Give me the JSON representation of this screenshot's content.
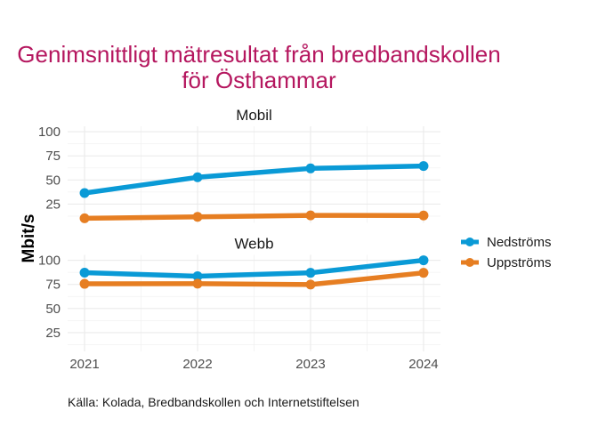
{
  "chart_data": {
    "type": "line",
    "title": "Genimsnittligt mätresultat från bredbandskollen för Östhammar",
    "title_lines": [
      "Genimsnittligt mätresultat från bredbandskollen",
      "för Östhammar"
    ],
    "xlabel": "",
    "ylabel": "Mbit/s",
    "x": [
      2021,
      2022,
      2023,
      2024
    ],
    "x_tick_labels": [
      "2021",
      "2022",
      "2023",
      "2024"
    ],
    "xlim": [
      2020.85,
      2024.15
    ],
    "y_ticks": [
      25,
      50,
      75,
      100
    ],
    "y_tick_labels": [
      "25",
      "50",
      "75",
      "100"
    ],
    "ylim": [
      5.6,
      105.6
    ],
    "grid": true,
    "legend_position": "right",
    "colors": {
      "Nedströms": "#0a9ad6",
      "Uppströms": "#e67e22",
      "title": "#b5175f"
    },
    "facets": [
      {
        "name": "Mobil",
        "series": [
          {
            "name": "Nedströms",
            "values": [
              36.5,
              52.8,
              62.0,
              64.5
            ]
          },
          {
            "name": "Uppströms",
            "values": [
              10.3,
              11.8,
              13.3,
              13.2
            ]
          }
        ]
      },
      {
        "name": "Webb",
        "series": [
          {
            "name": "Nedströms",
            "values": [
              87.2,
              83.5,
              87.0,
              100.0
            ]
          },
          {
            "name": "Uppströms",
            "values": [
              75.6,
              75.8,
              74.8,
              87.0
            ]
          }
        ]
      }
    ],
    "legend": [
      "Nedströms",
      "Uppströms"
    ],
    "caption": "Källa: Kolada, Bredbandskollen och Internetstiftelsen"
  }
}
